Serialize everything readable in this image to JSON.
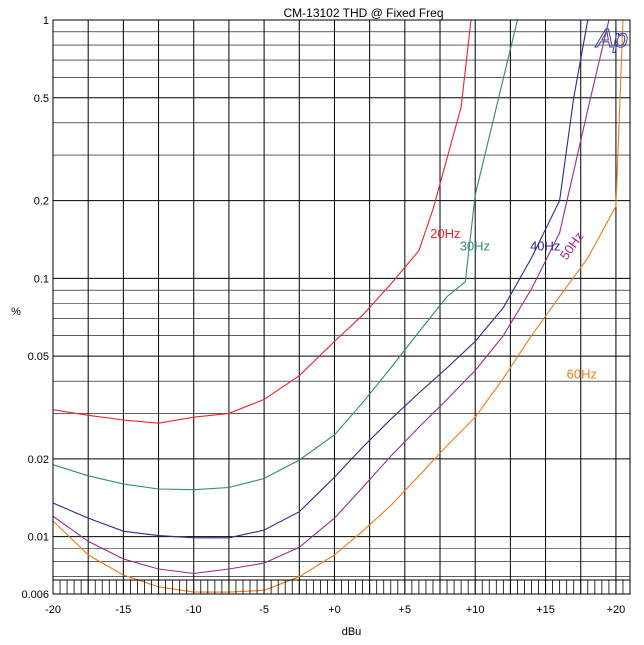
{
  "chart_data": {
    "type": "line",
    "title": "CM-13102  THD @ Fixed Freq",
    "xlabel": "dBu",
    "ylabel": "%",
    "xlim": [
      -20,
      21
    ],
    "ylim": [
      0.006,
      1
    ],
    "y_scale": "log",
    "grid": true,
    "x_ticks": [
      -20,
      -15,
      -10,
      -5,
      0,
      5,
      10,
      15,
      20
    ],
    "x_tick_labels": [
      "-20",
      "-15",
      "-10",
      "-5",
      "+0",
      "+5",
      "+10",
      "+15",
      "+20"
    ],
    "y_ticks": [
      0.006,
      0.01,
      0.02,
      0.05,
      0.1,
      0.2,
      0.5,
      1
    ],
    "y_tick_labels": [
      "0.006",
      "0.01",
      "0.02",
      "0.05",
      "0.1",
      "0.2",
      "0.5",
      "1"
    ],
    "watermark": "Ap",
    "series": [
      {
        "name": "20Hz",
        "color": "#e8262e",
        "x": [
          -20,
          -17.5,
          -15,
          -12.5,
          -10,
          -7.5,
          -5,
          -2.5,
          0,
          2,
          4,
          6,
          7,
          9,
          9.7,
          10
        ],
        "y": [
          0.031,
          0.0295,
          0.0283,
          0.0275,
          0.029,
          0.03,
          0.034,
          0.042,
          0.057,
          0.072,
          0.095,
          0.128,
          0.185,
          0.46,
          1.0,
          1.0
        ]
      },
      {
        "name": "30Hz",
        "color": "#2e8b6f",
        "x": [
          -20,
          -17.5,
          -15,
          -12.5,
          -10,
          -7.5,
          -5,
          -2.5,
          0,
          2,
          4,
          6,
          8,
          9.3,
          10,
          13
        ],
        "y": [
          0.019,
          0.0172,
          0.016,
          0.0153,
          0.0152,
          0.0155,
          0.0168,
          0.0198,
          0.0248,
          0.033,
          0.045,
          0.062,
          0.085,
          0.097,
          0.21,
          1.0
        ]
      },
      {
        "name": "40Hz",
        "color": "#2c2c8c",
        "x": [
          -20,
          -17.5,
          -15,
          -12.5,
          -10,
          -7.5,
          -5,
          -2.5,
          0,
          2,
          4,
          6,
          8,
          10,
          12,
          14,
          16,
          17,
          18
        ],
        "y": [
          0.0135,
          0.0118,
          0.0105,
          0.0101,
          0.0099,
          0.0099,
          0.0106,
          0.0125,
          0.017,
          0.0222,
          0.0285,
          0.036,
          0.045,
          0.057,
          0.077,
          0.12,
          0.2,
          0.5,
          1.0
        ]
      },
      {
        "name": "50Hz",
        "color": "#9c2a8f",
        "x": [
          -20,
          -17.5,
          -15,
          -12.5,
          -10,
          -7.5,
          -5,
          -2.5,
          0,
          2,
          4,
          6,
          8,
          10,
          12,
          14,
          16,
          18,
          19.5
        ],
        "y": [
          0.012,
          0.0096,
          0.0082,
          0.0075,
          0.0072,
          0.0075,
          0.0079,
          0.0091,
          0.0118,
          0.0155,
          0.0205,
          0.0265,
          0.034,
          0.044,
          0.06,
          0.091,
          0.15,
          0.45,
          1.0
        ]
      },
      {
        "name": "60Hz",
        "color": "#f07c1a",
        "x": [
          -20,
          -17.5,
          -15,
          -12.5,
          -10,
          -7.5,
          -5,
          -2.5,
          0,
          2,
          4,
          6,
          8,
          10,
          12,
          14,
          16,
          18,
          20,
          20.5
        ],
        "y": [
          0.0115,
          0.0085,
          0.0071,
          0.0064,
          0.0061,
          0.0061,
          0.0062,
          0.007,
          0.0085,
          0.0105,
          0.0132,
          0.0172,
          0.0225,
          0.029,
          0.041,
          0.06,
          0.085,
          0.12,
          0.19,
          1.0
        ]
      }
    ],
    "series_labels": [
      {
        "text": "20Hz",
        "x": 6.8,
        "y": 0.143,
        "rotate": 0
      },
      {
        "text": "30Hz",
        "x": 8.9,
        "y": 0.128,
        "rotate": 0
      },
      {
        "text": "40Hz",
        "x": 13.9,
        "y": 0.128,
        "rotate": 0
      },
      {
        "text": "50Hz",
        "x": 16.5,
        "y": 0.117,
        "rotate": -55
      },
      {
        "text": "60Hz",
        "x": 16.5,
        "y": 0.041,
        "rotate": 0
      }
    ]
  }
}
